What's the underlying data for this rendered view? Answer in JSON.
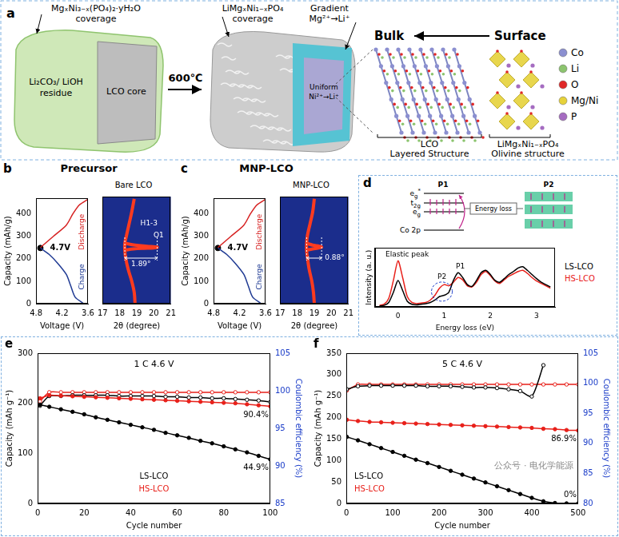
{
  "panel_a": {
    "label": "a",
    "precursor_coverage": "MgₓNi₃₋ₓ(PO₄)₂·yH₂O coverage",
    "residue": "Li₂CO₃/ LiOH residue",
    "core": "LCO core",
    "temperature": "600℃",
    "product_coverage": "LiMgₓNi₁₋ₓPO₄ coverage",
    "gradient": "Gradient Mg²⁺→Li⁺",
    "uniform": "Uniform Ni²⁺→Li⁺",
    "bulk": "Bulk",
    "surface": "Surface",
    "atoms": [
      {
        "name": "Co",
        "color": "#8b8fd0"
      },
      {
        "name": "Li",
        "color": "#8cc46e"
      },
      {
        "name": "O",
        "color": "#e02828"
      },
      {
        "name": "Mg/Ni",
        "color": "#e6d23a"
      },
      {
        "name": "P",
        "color": "#a56cc1"
      }
    ],
    "structures": [
      {
        "name": "LCO",
        "description": "Layered Structure"
      },
      {
        "name": "LiMgₓNi₁₋ₓPO₄",
        "description": "Olivine structure"
      }
    ]
  },
  "watermark": "公众号 · 电化学能源",
  "chart_data": [
    {
      "panel": "b",
      "title": "Precursor",
      "type": "line",
      "xlabel": "Voltage (V)",
      "ylabel": "Capacity (mAh/g)",
      "xlim": [
        4.8,
        3.6
      ],
      "xticks": [
        4.8,
        4.2,
        3.6
      ],
      "ylim": [
        0,
        470
      ],
      "yticks": [
        0,
        100,
        200,
        300,
        400
      ],
      "grid": false,
      "series": [
        {
          "name": "Charge",
          "color": "#1f3a93",
          "line_style": "solid",
          "marker": "none",
          "x": [
            3.7,
            3.9,
            4.0,
            4.1,
            4.3,
            4.5,
            4.7
          ],
          "values": [
            0,
            30,
            80,
            130,
            180,
            220,
            248
          ]
        },
        {
          "name": "Discharge",
          "color": "#d62020",
          "line_style": "solid",
          "marker": "none",
          "x": [
            4.7,
            4.4,
            4.1,
            3.95,
            3.8,
            3.6
          ],
          "values": [
            250,
            300,
            350,
            400,
            440,
            465
          ]
        },
        {
          "name": "4.7V",
          "color": "#000000",
          "line_style": "none",
          "marker": "circle",
          "x": [
            4.7
          ],
          "values": [
            248
          ]
        }
      ]
    },
    {
      "panel": "b",
      "subtitle": "Bare LCO",
      "type": "line",
      "xlabel": "2θ (degree)",
      "xlim": [
        17,
        21
      ],
      "xticks": [
        17,
        18,
        19,
        20,
        21
      ],
      "ylim": [
        0,
        470
      ],
      "tick_labels": "x",
      "grid": false,
      "annotations": [
        "H1-3",
        "O1",
        "1.89°"
      ],
      "series": [
        {
          "color": "#ff3b1f",
          "line_style": "solid",
          "marker": "none",
          "x": [
            18.9,
            18.85,
            18.7,
            18.5,
            18.35,
            18.3,
            18.3,
            18.4,
            18.55,
            18.7,
            18.85
          ],
          "values": [
            0,
            50,
            100,
            150,
            200,
            235,
            265,
            300,
            350,
            400,
            460
          ]
        },
        {
          "color": "#ff3b1f",
          "line_style": "solid",
          "marker": "none",
          "x": [
            18.3,
            18.8,
            19.4,
            20.0,
            20.2,
            19.6,
            18.9,
            18.3
          ],
          "values": [
            235,
            240,
            243,
            245,
            248,
            252,
            257,
            265
          ]
        }
      ]
    },
    {
      "panel": "c",
      "title": "MNP-LCO",
      "type": "line",
      "xlabel": "Voltage (V)",
      "ylabel": "Capacity (mAh/g)",
      "xlim": [
        4.8,
        3.6
      ],
      "xticks": [
        4.8,
        4.2,
        3.6
      ],
      "ylim": [
        0,
        470
      ],
      "yticks": [
        0,
        100,
        200,
        300,
        400
      ],
      "grid": false,
      "series": [
        {
          "name": "Charge",
          "color": "#1f3a93",
          "line_style": "solid",
          "marker": "none",
          "x": [
            3.7,
            3.9,
            4.0,
            4.1,
            4.3,
            4.5,
            4.7
          ],
          "values": [
            0,
            30,
            80,
            130,
            180,
            220,
            248
          ]
        },
        {
          "name": "Discharge",
          "color": "#d62020",
          "line_style": "solid",
          "marker": "none",
          "x": [
            4.7,
            4.4,
            4.1,
            3.95,
            3.8,
            3.6
          ],
          "values": [
            250,
            300,
            350,
            400,
            440,
            465
          ]
        },
        {
          "name": "4.7V",
          "color": "#000000",
          "line_style": "none",
          "marker": "circle",
          "x": [
            4.7
          ],
          "values": [
            248
          ]
        }
      ]
    },
    {
      "panel": "c",
      "subtitle": "MNP-LCO",
      "type": "line",
      "xlabel": "2θ (degree)",
      "xlim": [
        17,
        21
      ],
      "xticks": [
        17,
        18,
        19,
        20,
        21
      ],
      "ylim": [
        0,
        470
      ],
      "tick_labels": "x",
      "grid": false,
      "annotations": [
        "0.88°"
      ],
      "series": [
        {
          "color": "#ff3b1f",
          "line_style": "solid",
          "marker": "none",
          "x": [
            19.0,
            18.95,
            18.85,
            18.7,
            18.6,
            18.55,
            18.55,
            18.6,
            18.75,
            18.9,
            19.0
          ],
          "values": [
            0,
            50,
            100,
            150,
            200,
            235,
            265,
            300,
            350,
            400,
            460
          ]
        },
        {
          "color": "#ff3b1f",
          "line_style": "solid",
          "marker": "none",
          "x": [
            18.55,
            18.9,
            19.3,
            19.43,
            19.3,
            18.9,
            18.55
          ],
          "values": [
            235,
            240,
            245,
            248,
            252,
            257,
            265
          ]
        }
      ]
    },
    {
      "panel": "d",
      "type": "line",
      "xlabel": "Energy loss (eV)",
      "ylabel": "Intensity (a. u.)",
      "xlim": [
        -0.5,
        3.4
      ],
      "xticks": [
        0,
        1,
        2,
        3
      ],
      "ylim": [
        0,
        1
      ],
      "tick_labels": "x",
      "grid": false,
      "legend": "right",
      "annotations": [
        {
          "text": "Elastic peak",
          "x": 0.2,
          "y": 0.82
        },
        {
          "text": "P1",
          "x": 1.35,
          "y": 0.62
        },
        {
          "text": "P2",
          "x": 0.95,
          "y": 0.45
        }
      ],
      "inset": {
        "labels": [
          "P1",
          "P2"
        ],
        "levels": [
          "eg*",
          "t2g",
          "eg",
          "Co 2p"
        ],
        "arrow": "Energy loss"
      },
      "x": [
        -0.4,
        -0.3,
        -0.2,
        -0.1,
        0,
        0.1,
        0.2,
        0.3,
        0.4,
        0.5,
        0.6,
        0.7,
        0.8,
        0.9,
        1.0,
        1.1,
        1.2,
        1.3,
        1.4,
        1.5,
        1.6,
        1.7,
        1.8,
        1.9,
        2.0,
        2.1,
        2.2,
        2.3,
        2.4,
        2.5,
        2.6,
        2.7,
        2.8,
        2.9,
        3.0,
        3.1,
        3.2,
        3.3
      ],
      "series": [
        {
          "name": "LS-LCO",
          "color": "#000000",
          "line_style": "solid",
          "marker": "none",
          "values": [
            0.02,
            0.03,
            0.08,
            0.25,
            0.45,
            0.28,
            0.1,
            0.05,
            0.04,
            0.05,
            0.06,
            0.08,
            0.12,
            0.18,
            0.2,
            0.25,
            0.45,
            0.58,
            0.5,
            0.38,
            0.35,
            0.45,
            0.58,
            0.62,
            0.55,
            0.45,
            0.42,
            0.48,
            0.55,
            0.6,
            0.66,
            0.68,
            0.62,
            0.55,
            0.48,
            0.42,
            0.38,
            0.34
          ]
        },
        {
          "name": "HS-LCO",
          "color": "#e8201a",
          "line_style": "solid",
          "marker": "none",
          "values": [
            0.03,
            0.05,
            0.15,
            0.45,
            0.78,
            0.5,
            0.18,
            0.08,
            0.06,
            0.07,
            0.08,
            0.12,
            0.2,
            0.32,
            0.38,
            0.36,
            0.42,
            0.5,
            0.46,
            0.36,
            0.34,
            0.42,
            0.55,
            0.6,
            0.53,
            0.44,
            0.4,
            0.46,
            0.52,
            0.56,
            0.6,
            0.62,
            0.57,
            0.5,
            0.44,
            0.4,
            0.36,
            0.32
          ]
        }
      ]
    },
    {
      "panel": "e",
      "type": "line",
      "title": "1 C 4.6 V",
      "xlabel": "Cycle number",
      "ylabel": "Capacity (mAh g⁻¹)",
      "y2label": "Coulombic efficiency (%)",
      "xlim": [
        0,
        100
      ],
      "xticks": [
        0,
        20,
        40,
        60,
        80,
        100
      ],
      "ylim": [
        0,
        300
      ],
      "yticks": [
        0,
        100,
        200,
        300
      ],
      "y2lim": [
        85,
        105
      ],
      "y2ticks": [
        85,
        90,
        95,
        100,
        105
      ],
      "grid": false,
      "legend": "lower center",
      "annotations": [
        "44.9%",
        "90.4%"
      ],
      "x": [
        1,
        5,
        10,
        15,
        20,
        25,
        30,
        35,
        40,
        45,
        50,
        55,
        60,
        65,
        70,
        75,
        80,
        85,
        90,
        95,
        100
      ],
      "series": [
        {
          "name": "LS-LCO",
          "color": "#000000",
          "line_style": "solid",
          "marker": "circle",
          "values": [
            197,
            193,
            188,
            183,
            178,
            172,
            167,
            162,
            157,
            152,
            147,
            141,
            136,
            131,
            125,
            120,
            114,
            108,
            102,
            95,
            88
          ]
        },
        {
          "name": "HS-LCO",
          "color": "#e8201a",
          "line_style": "solid",
          "marker": "circle",
          "values": [
            210,
            216,
            215,
            214,
            213,
            212,
            211,
            210,
            209,
            208,
            207,
            206,
            205,
            204,
            203,
            202,
            201,
            200,
            198,
            196,
            194
          ]
        },
        {
          "name": "LS-LCO",
          "color": "#000000",
          "line_style": "solid",
          "marker": "open_circle",
          "axis": "y2",
          "values": [
            98.0,
            99.3,
            99.3,
            99.4,
            99.4,
            99.4,
            99.4,
            99.3,
            99.3,
            99.3,
            99.3,
            99.2,
            99.2,
            99.1,
            99.1,
            99.0,
            99.0,
            98.9,
            98.8,
            98.7,
            98.5
          ]
        },
        {
          "name": "HS-LCO",
          "color": "#e8201a",
          "line_style": "solid",
          "marker": "open_circle",
          "axis": "y2",
          "values": [
            98.6,
            99.8,
            99.8,
            99.8,
            99.8,
            99.8,
            99.8,
            99.8,
            99.8,
            99.8,
            99.8,
            99.8,
            99.8,
            99.8,
            99.8,
            99.8,
            99.8,
            99.8,
            99.8,
            99.8,
            99.8
          ]
        }
      ]
    },
    {
      "panel": "f",
      "type": "line",
      "title": "5 C 4.6 V",
      "xlabel": "Cycle number",
      "ylabel": "Capacity (mAh g⁻¹)",
      "y2label": "Coulombic efficiency (%)",
      "xlim": [
        0,
        500
      ],
      "xticks": [
        0,
        100,
        200,
        300,
        400,
        500
      ],
      "ylim": [
        0,
        350
      ],
      "yticks": [
        0,
        50,
        100,
        150,
        200,
        250,
        300,
        350
      ],
      "y2lim": [
        80,
        105
      ],
      "y2ticks": [
        80,
        85,
        90,
        95,
        100,
        105
      ],
      "grid": false,
      "legend": "lower left",
      "annotations": [
        "0%",
        "86.9%"
      ],
      "x": [
        1,
        25,
        50,
        75,
        100,
        125,
        150,
        175,
        200,
        225,
        250,
        275,
        300,
        325,
        350,
        375,
        400,
        425,
        450,
        475,
        500
      ],
      "series": [
        {
          "name": "LS-LCO",
          "color": "#000000",
          "line_style": "solid",
          "marker": "circle",
          "values": [
            155,
            147,
            138,
            129,
            120,
            111,
            102,
            94,
            85,
            76,
            67,
            58,
            49,
            40,
            31,
            22,
            13,
            5,
            1,
            0,
            0
          ]
        },
        {
          "name": "HS-LCO",
          "color": "#e8201a",
          "line_style": "solid",
          "marker": "circle",
          "values": [
            195,
            192,
            190,
            189,
            188,
            187,
            186,
            185,
            184,
            183,
            182,
            181,
            180,
            179,
            178,
            177,
            176,
            174,
            173,
            171,
            170
          ]
        },
        {
          "name": "LS-LCO",
          "color": "#000000",
          "line_style": "solid",
          "marker": "open_circle",
          "axis": "y2",
          "values": [
            99.0,
            99.5,
            99.6,
            99.6,
            99.6,
            99.6,
            99.6,
            99.5,
            99.5,
            99.5,
            99.4,
            99.3,
            99.3,
            99.2,
            99.0,
            98.7,
            97.8,
            103,
            null,
            null,
            null
          ]
        },
        {
          "name": "HS-LCO",
          "color": "#e8201a",
          "line_style": "solid",
          "marker": "open_circle",
          "axis": "y2",
          "values": [
            98.8,
            99.8,
            99.8,
            99.8,
            99.8,
            99.8,
            99.8,
            99.8,
            99.8,
            99.8,
            99.8,
            99.8,
            99.8,
            99.8,
            99.8,
            99.8,
            99.8,
            99.8,
            99.8,
            99.8,
            99.8
          ]
        }
      ]
    }
  ]
}
